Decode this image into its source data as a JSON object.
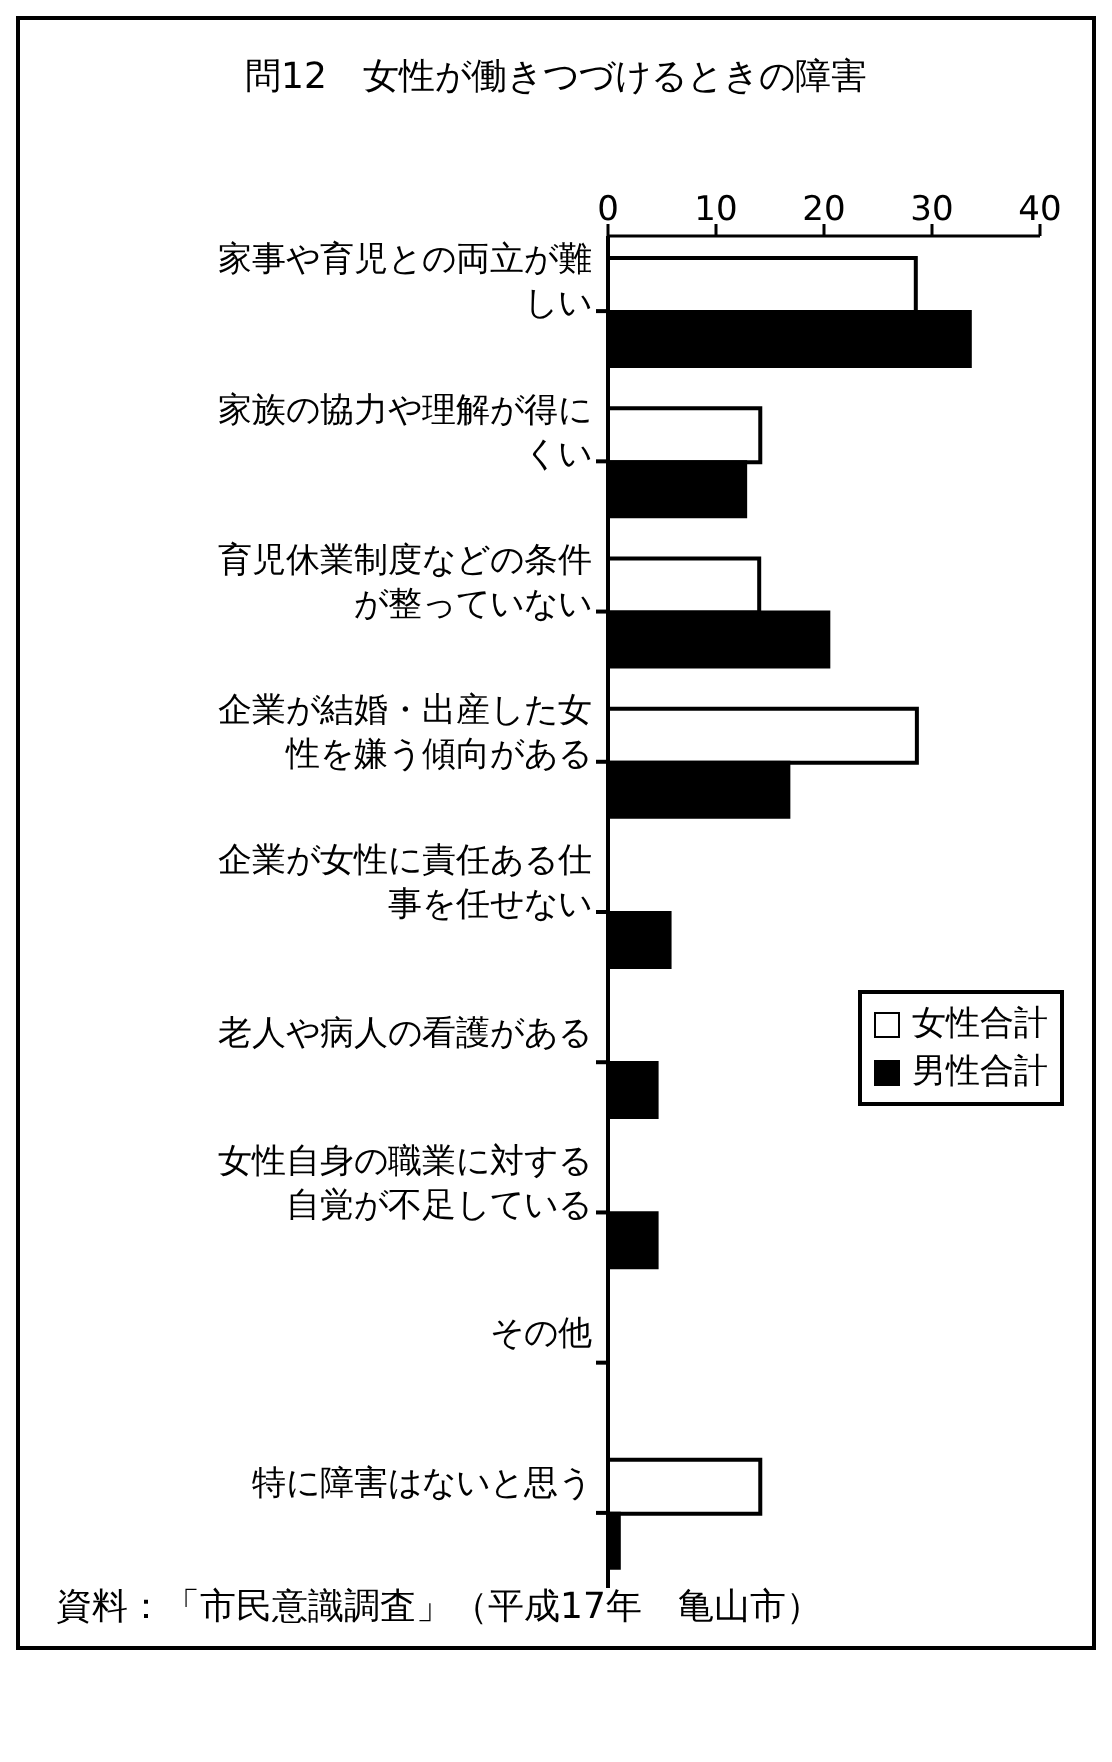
{
  "chart_data": {
    "type": "bar",
    "orientation": "horizontal",
    "title": "問12　女性が働きつづけるときの障害",
    "categories": [
      "家事や育児との両立が難しい",
      "家族の協力や理解が得にくい",
      "育児休業制度などの条件が整っていない",
      "企業が結婚・出産した女性を嫌う傾向がある",
      "企業が女性に責任ある仕事を任せない",
      "老人や病人の看護がある",
      "女性自身の職業に対する自覚が不足している",
      "その他",
      "特に障害はないと思う"
    ],
    "series": [
      {
        "name": "女性合計",
        "color": "#ffffff",
        "values": [
          28.5,
          14.1,
          14,
          28.6,
          0,
          0,
          0,
          0,
          14.1
        ]
      },
      {
        "name": "男性合計",
        "color": "#000000",
        "values": [
          33.5,
          12.7,
          20.4,
          16.7,
          5.7,
          4.5,
          4.5,
          0,
          1
        ]
      }
    ],
    "xlim": [
      0,
      40
    ],
    "xticks": [
      0,
      10,
      20,
      30,
      40
    ],
    "legend": "right",
    "annotations": [
      "資料：「市民意識調査」（平成17年　亀山市）"
    ]
  }
}
